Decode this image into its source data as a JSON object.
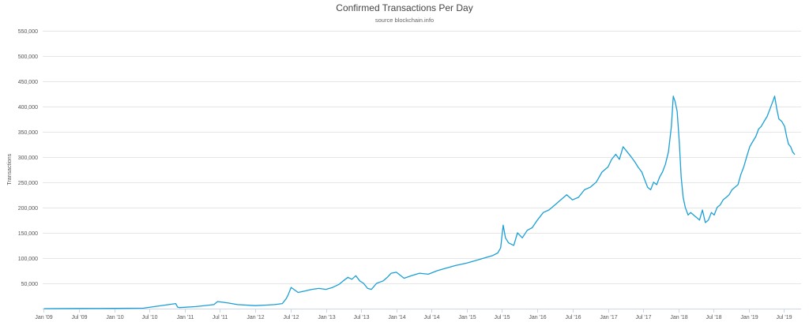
{
  "chart_data": {
    "type": "line",
    "title": "Confirmed Transactions Per Day",
    "subtitle": "source  blockchain.info",
    "ylabel": "Transactions",
    "xlabel": "",
    "ylim": [
      0,
      550000
    ],
    "yticks": [
      50000,
      100000,
      150000,
      200000,
      250000,
      300000,
      350000,
      400000,
      450000,
      500000,
      550000
    ],
    "ytick_labels": [
      "50,000",
      "100,000",
      "150,000",
      "200,000",
      "250,000",
      "300,000",
      "350,000",
      "400,000",
      "450,000",
      "500,000",
      "550,000"
    ],
    "xticks": [
      "2009-01-01",
      "2009-07-01",
      "2010-01-01",
      "2010-07-01",
      "2011-01-01",
      "2011-07-01",
      "2012-01-01",
      "2012-07-01",
      "2013-01-01",
      "2013-07-01",
      "2014-01-01",
      "2014-07-01",
      "2015-01-01",
      "2015-07-01",
      "2016-01-01",
      "2016-07-01",
      "2017-01-01",
      "2017-07-01",
      "2018-01-01",
      "2018-07-01",
      "2019-01-01",
      "2019-07-01"
    ],
    "xtick_labels": [
      "Jan '09",
      "Jul '09",
      "Jan '10",
      "Jul '10",
      "Jan '11",
      "Jul '11",
      "Jan '12",
      "Jul '12",
      "Jan '13",
      "Jul '13",
      "Jan '14",
      "Jul '14",
      "Jan '15",
      "Jul '15",
      "Jan '16",
      "Jul '16",
      "Jan '17",
      "Jul '17",
      "Jan '18",
      "Jul '18",
      "Jan '19",
      "Jul '19"
    ],
    "grid": true,
    "legend": "none",
    "line_color": "#1a9fd6",
    "series": [
      {
        "x": [
          "2009-01-03",
          "2009-07-01",
          "2010-01-01",
          "2010-06-01",
          "2010-11-15",
          "2010-11-25",
          "2010-12-05",
          "2011-03-01",
          "2011-06-01",
          "2011-06-20",
          "2011-08-15",
          "2011-10-01",
          "2012-01-01",
          "2012-03-01",
          "2012-04-10",
          "2012-05-20",
          "2012-06-10",
          "2012-06-20",
          "2012-07-05",
          "2012-08-10",
          "2012-09-15",
          "2012-10-20",
          "2012-11-25",
          "2013-01-01",
          "2013-02-05",
          "2013-03-10",
          "2013-04-01",
          "2013-04-25",
          "2013-05-15",
          "2013-06-05",
          "2013-06-25",
          "2013-07-15",
          "2013-08-05",
          "2013-08-25",
          "2013-09-20",
          "2013-10-25",
          "2013-11-15",
          "2013-12-05",
          "2014-01-01",
          "2014-02-10",
          "2014-03-20",
          "2014-05-01",
          "2014-06-15",
          "2014-08-01",
          "2014-09-15",
          "2014-11-01",
          "2015-01-01",
          "2015-02-15",
          "2015-04-01",
          "2015-05-15",
          "2015-06-10",
          "2015-06-25",
          "2015-07-08",
          "2015-07-20",
          "2015-08-05",
          "2015-09-01",
          "2015-09-20",
          "2015-10-15",
          "2015-11-10",
          "2015-12-05",
          "2016-01-01",
          "2016-02-01",
          "2016-03-01",
          "2016-04-01",
          "2016-05-01",
          "2016-06-01",
          "2016-07-01",
          "2016-08-01",
          "2016-09-01",
          "2016-10-01",
          "2016-11-01",
          "2016-12-01",
          "2017-01-01",
          "2017-01-20",
          "2017-02-10",
          "2017-03-01",
          "2017-03-20",
          "2017-04-10",
          "2017-05-01",
          "2017-05-20",
          "2017-06-05",
          "2017-06-25",
          "2017-07-10",
          "2017-07-25",
          "2017-08-10",
          "2017-08-25",
          "2017-09-10",
          "2017-09-25",
          "2017-10-10",
          "2017-10-25",
          "2017-11-10",
          "2017-11-25",
          "2017-12-05",
          "2017-12-14",
          "2017-12-25",
          "2018-01-05",
          "2018-01-15",
          "2018-01-25",
          "2018-02-05",
          "2018-02-20",
          "2018-03-05",
          "2018-03-20",
          "2018-04-05",
          "2018-04-20",
          "2018-05-05",
          "2018-05-20",
          "2018-06-05",
          "2018-06-20",
          "2018-07-05",
          "2018-07-20",
          "2018-08-05",
          "2018-08-20",
          "2018-09-05",
          "2018-09-20",
          "2018-10-05",
          "2018-10-20",
          "2018-11-05",
          "2018-11-20",
          "2018-12-05",
          "2018-12-20",
          "2019-01-05",
          "2019-01-20",
          "2019-02-05",
          "2019-02-20",
          "2019-03-05",
          "2019-03-20",
          "2019-04-05",
          "2019-04-20",
          "2019-05-05",
          "2019-05-14",
          "2019-05-25",
          "2019-06-05",
          "2019-06-20",
          "2019-07-05",
          "2019-07-15",
          "2019-07-25",
          "2019-08-05",
          "2019-08-15",
          "2019-08-25"
        ],
        "values": [
          0,
          300,
          500,
          1000,
          10000,
          3000,
          2000,
          4000,
          8000,
          14000,
          11000,
          8000,
          6000,
          7000,
          8000,
          10000,
          20000,
          28000,
          42000,
          32000,
          35000,
          38000,
          40000,
          38000,
          42000,
          48000,
          55000,
          62000,
          58000,
          65000,
          55000,
          50000,
          40000,
          38000,
          50000,
          55000,
          62000,
          70000,
          72000,
          60000,
          65000,
          70000,
          68000,
          75000,
          80000,
          85000,
          90000,
          95000,
          100000,
          105000,
          110000,
          120000,
          165000,
          140000,
          130000,
          125000,
          150000,
          140000,
          155000,
          160000,
          175000,
          190000,
          195000,
          205000,
          215000,
          225000,
          215000,
          220000,
          235000,
          240000,
          250000,
          270000,
          280000,
          295000,
          305000,
          295000,
          320000,
          310000,
          300000,
          290000,
          280000,
          270000,
          255000,
          240000,
          235000,
          250000,
          245000,
          260000,
          270000,
          285000,
          310000,
          360000,
          420000,
          410000,
          390000,
          330000,
          260000,
          220000,
          200000,
          185000,
          190000,
          185000,
          180000,
          175000,
          195000,
          170000,
          175000,
          190000,
          185000,
          200000,
          205000,
          215000,
          220000,
          225000,
          235000,
          240000,
          245000,
          265000,
          280000,
          300000,
          320000,
          330000,
          340000,
          355000,
          360000,
          370000,
          380000,
          395000,
          410000,
          420000,
          395000,
          375000,
          370000,
          360000,
          340000,
          325000,
          320000,
          310000,
          305000
        ]
      }
    ]
  }
}
